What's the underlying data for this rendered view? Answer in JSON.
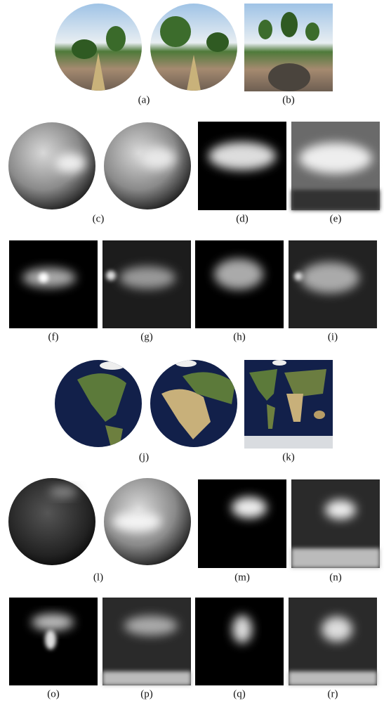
{
  "figure": {
    "captions": [
      "(a)",
      "(b)",
      "(c)",
      "(d)",
      "(e)",
      "(f)",
      "(g)",
      "(h)",
      "(i)",
      "(j)",
      "(k)",
      "(l)",
      "(m)",
      "(n)",
      "(o)",
      "(p)",
      "(q)",
      "(r)"
    ]
  }
}
